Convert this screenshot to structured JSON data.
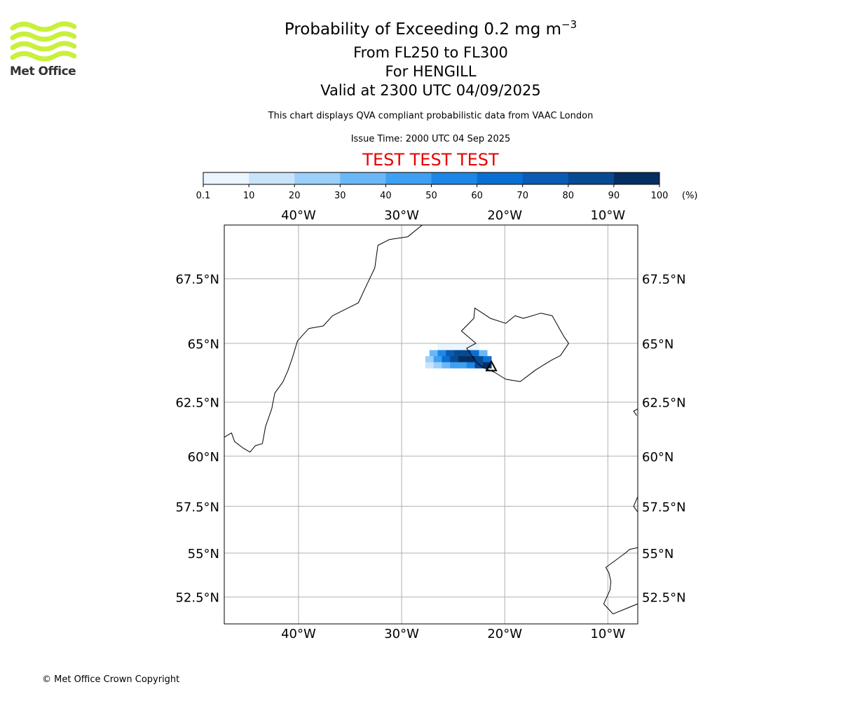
{
  "header": {
    "title_prefix": "Probability of Exceeding 0.2 mg m",
    "title_exponent": "−3",
    "subtitle_range": "From FL250 to FL300",
    "subtitle_volcano": "For HENGILL",
    "subtitle_valid": "Valid at 2300 UTC 04/09/2025",
    "disclaimer": "This chart displays QVA compliant probabilistic data from VAAC London",
    "issue_time": "Issue Time: 2000 UTC 04 Sep 2025",
    "test_banner": "TEST TEST TEST"
  },
  "logo": {
    "text": "Met Office",
    "color": "#c8f03c"
  },
  "footer": {
    "copyright": "© Met Office Crown Copyright"
  },
  "colorbar": {
    "unit": "(%)",
    "ticks": [
      "0.1",
      "10",
      "20",
      "30",
      "40",
      "50",
      "60",
      "70",
      "80",
      "90",
      "100"
    ],
    "colors": [
      "#ebf5ff",
      "#c8e4fb",
      "#9ccffa",
      "#6ab7f7",
      "#3ea0f2",
      "#1c87e6",
      "#0a6fd3",
      "#0a5bb4",
      "#074a94",
      "#052f63"
    ]
  },
  "map": {
    "lon_range": [
      -47.2,
      -7.1
    ],
    "lat_range": [
      50.9,
      69.4
    ],
    "lon_ticks": [
      {
        "value": -40,
        "label": "40°W"
      },
      {
        "value": -30,
        "label": "30°W"
      },
      {
        "value": -20,
        "label": "20°W"
      },
      {
        "value": -10,
        "label": "10°W"
      }
    ],
    "lat_ticks": [
      {
        "value": 67.5,
        "label": "67.5°N"
      },
      {
        "value": 65,
        "label": "65°N"
      },
      {
        "value": 62.5,
        "label": "62.5°N"
      },
      {
        "value": 60,
        "label": "60°N"
      },
      {
        "value": 57.5,
        "label": "57.5°N"
      },
      {
        "value": 55,
        "label": "55°N"
      },
      {
        "value": 52.5,
        "label": "52.5°N"
      }
    ],
    "grid": true,
    "probability_cells": [
      {
        "lon": -26.1,
        "lat": 64.85,
        "p": 5
      },
      {
        "lon": -25.3,
        "lat": 64.85,
        "p": 8
      },
      {
        "lon": -24.5,
        "lat": 64.85,
        "p": 8
      },
      {
        "lon": -23.7,
        "lat": 64.85,
        "p": 6
      },
      {
        "lon": -22.9,
        "lat": 64.85,
        "p": 4
      },
      {
        "lon": -26.9,
        "lat": 64.6,
        "p": 35
      },
      {
        "lon": -26.1,
        "lat": 64.6,
        "p": 55
      },
      {
        "lon": -25.3,
        "lat": 64.6,
        "p": 75
      },
      {
        "lon": -24.5,
        "lat": 64.6,
        "p": 85
      },
      {
        "lon": -23.7,
        "lat": 64.6,
        "p": 85
      },
      {
        "lon": -22.9,
        "lat": 64.6,
        "p": 65
      },
      {
        "lon": -22.1,
        "lat": 64.6,
        "p": 35
      },
      {
        "lon": -27.3,
        "lat": 64.35,
        "p": 25
      },
      {
        "lon": -26.5,
        "lat": 64.35,
        "p": 45
      },
      {
        "lon": -25.7,
        "lat": 64.35,
        "p": 65
      },
      {
        "lon": -24.9,
        "lat": 64.35,
        "p": 85
      },
      {
        "lon": -24.1,
        "lat": 64.35,
        "p": 95
      },
      {
        "lon": -23.3,
        "lat": 64.35,
        "p": 95
      },
      {
        "lon": -22.5,
        "lat": 64.35,
        "p": 85
      },
      {
        "lon": -21.7,
        "lat": 64.35,
        "p": 65
      },
      {
        "lon": -27.3,
        "lat": 64.1,
        "p": 15
      },
      {
        "lon": -26.5,
        "lat": 64.1,
        "p": 25
      },
      {
        "lon": -25.7,
        "lat": 64.1,
        "p": 35
      },
      {
        "lon": -24.9,
        "lat": 64.1,
        "p": 45
      },
      {
        "lon": -24.1,
        "lat": 64.1,
        "p": 45
      },
      {
        "lon": -23.3,
        "lat": 64.1,
        "p": 55
      },
      {
        "lon": -22.5,
        "lat": 64.1,
        "p": 85
      },
      {
        "lon": -21.7,
        "lat": 64.1,
        "p": 95
      }
    ],
    "coastlines": [
      [
        [
          -47.2,
          60.9
        ],
        [
          -46.5,
          61.1
        ],
        [
          -46.2,
          60.7
        ],
        [
          -45.4,
          60.4
        ],
        [
          -44.7,
          60.2
        ],
        [
          -44.2,
          60.5
        ],
        [
          -43.5,
          60.6
        ],
        [
          -43.2,
          61.4
        ],
        [
          -42.6,
          62.2
        ],
        [
          -42.3,
          62.9
        ],
        [
          -41.5,
          63.4
        ],
        [
          -41.0,
          63.9
        ],
        [
          -40.6,
          64.4
        ],
        [
          -40.1,
          65.1
        ],
        [
          -39.0,
          65.6
        ],
        [
          -37.6,
          65.7
        ],
        [
          -36.7,
          66.1
        ],
        [
          -35.7,
          66.3
        ],
        [
          -34.2,
          66.6
        ],
        [
          -33.6,
          67.1
        ],
        [
          -32.6,
          67.9
        ],
        [
          -32.3,
          68.7
        ],
        [
          -31.2,
          68.9
        ],
        [
          -29.4,
          69.0
        ],
        [
          -28.0,
          69.4
        ],
        [
          -25.3,
          69.6
        ]
      ],
      [
        [
          -22.1,
          64.0
        ],
        [
          -22.7,
          64.2
        ],
        [
          -23.7,
          64.8
        ],
        [
          -22.8,
          65.0
        ],
        [
          -24.2,
          65.5
        ],
        [
          -23.0,
          66.0
        ],
        [
          -22.9,
          66.4
        ],
        [
          -21.4,
          66.0
        ],
        [
          -19.9,
          65.8
        ],
        [
          -19.0,
          66.1
        ],
        [
          -18.2,
          66.0
        ],
        [
          -16.5,
          66.2
        ],
        [
          -15.4,
          66.1
        ],
        [
          -14.3,
          65.3
        ],
        [
          -13.8,
          65.0
        ],
        [
          -14.6,
          64.5
        ],
        [
          -15.5,
          64.3
        ],
        [
          -17.0,
          63.9
        ],
        [
          -18.5,
          63.4
        ],
        [
          -19.9,
          63.5
        ],
        [
          -21.0,
          63.8
        ],
        [
          -22.1,
          64.0
        ]
      ],
      [
        [
          -7.1,
          62.2
        ],
        [
          -7.5,
          62.1
        ],
        [
          -7.2,
          61.9
        ]
      ],
      [
        [
          -7.1,
          58.0
        ],
        [
          -7.5,
          57.5
        ],
        [
          -7.1,
          57.2
        ]
      ],
      [
        [
          -7.1,
          55.3
        ],
        [
          -7.9,
          55.2
        ],
        [
          -8.3,
          55.0
        ],
        [
          -10.2,
          54.2
        ],
        [
          -9.9,
          53.9
        ],
        [
          -9.7,
          53.4
        ],
        [
          -9.8,
          52.9
        ],
        [
          -10.4,
          52.1
        ],
        [
          -9.8,
          51.7
        ],
        [
          -9.5,
          51.5
        ],
        [
          -8.3,
          51.8
        ],
        [
          -7.1,
          52.1
        ]
      ]
    ],
    "volcano": {
      "name": "HENGILL",
      "lon": -21.3,
      "lat": 64.05
    }
  }
}
